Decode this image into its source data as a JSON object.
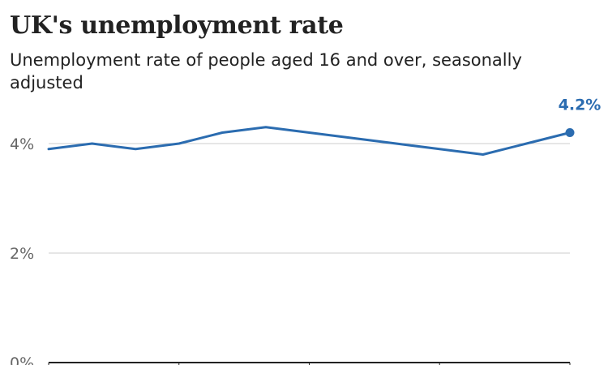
{
  "title": "UK's unemployment rate",
  "subtitle": "Unemployment rate of people aged 16 and over, seasonally adjusted",
  "colors": {
    "series": "#2b6cb0",
    "grid": "#cccccc",
    "axis": "#222222",
    "tick_text": "#666666"
  },
  "chart_data": {
    "type": "line",
    "title": "UK's unemployment rate",
    "subtitle": "Unemployment rate of people aged 16 and over, seasonally adjusted",
    "xlabel": "",
    "ylabel": "",
    "ylim": [
      0,
      4.6
    ],
    "y_ticks": [
      {
        "value": 0,
        "label": "0%"
      },
      {
        "value": 2,
        "label": "2%"
      },
      {
        "value": 4,
        "label": "4%"
      }
    ],
    "grid": true,
    "series": [
      {
        "name": "",
        "values": [
          3.9,
          4.0,
          3.9,
          4.0,
          4.2,
          4.3,
          4.2,
          4.1,
          4.0,
          3.9,
          3.8,
          4.0,
          4.2
        ]
      }
    ],
    "end_label": "4.2%"
  }
}
